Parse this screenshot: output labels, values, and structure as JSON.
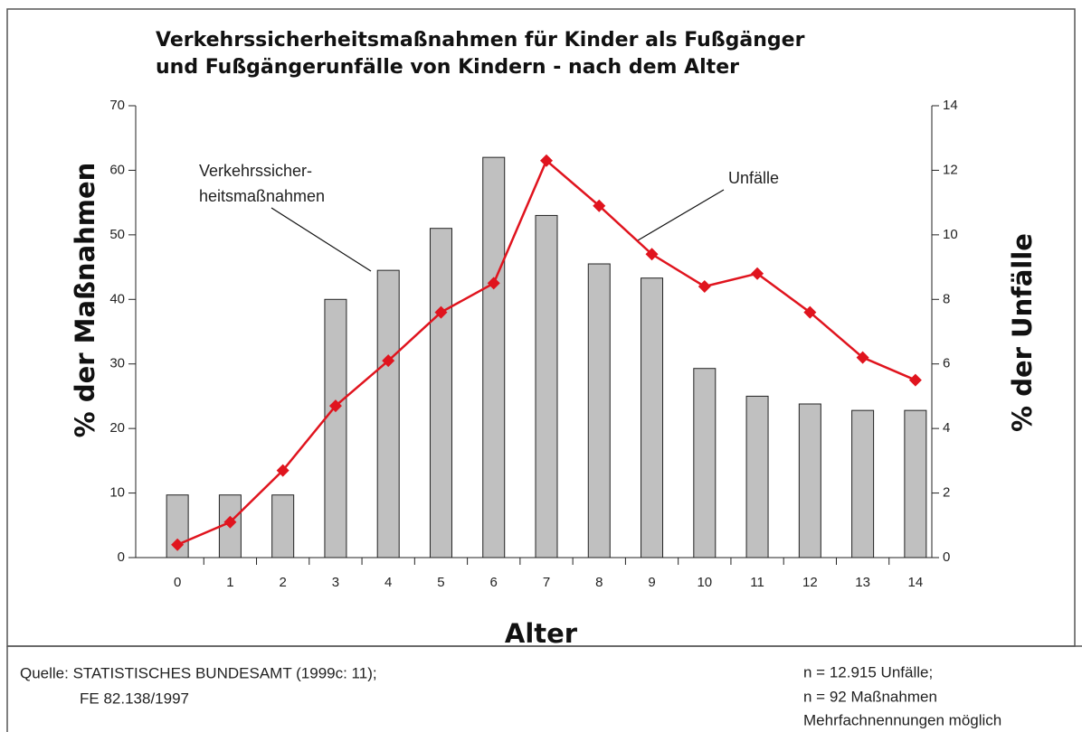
{
  "chart_data": {
    "type": "bar+line",
    "title": [
      "Verkehrssicherheitsmaßnahmen für Kinder als Fußgänger",
      "und Fußgängerunfälle von Kindern - nach dem Alter"
    ],
    "x_label": "Alter",
    "y_label": "% der Maßnahmen",
    "y2_label": "% der Unfälle",
    "categories": [
      "0",
      "1",
      "2",
      "3",
      "4",
      "5",
      "6",
      "7",
      "8",
      "9",
      "10",
      "11",
      "12",
      "13",
      "14"
    ],
    "series": [
      {
        "name": "Verkehrssicherheitsmaßnahmen",
        "type": "bar",
        "color": "#c0c0c0",
        "values": [
          9.7,
          9.7,
          9.7,
          40,
          44.5,
          51,
          62,
          53,
          45.5,
          43.3,
          29.3,
          25,
          23.8,
          22.8,
          22.8
        ]
      },
      {
        "name": "Unfälle",
        "type": "line",
        "axis": "y2",
        "color": "#e0141e",
        "values": [
          0.4,
          1.1,
          2.7,
          4.7,
          6.1,
          7.6,
          8.5,
          12.3,
          10.9,
          9.4,
          8.4,
          8.8,
          7.6,
          6.2,
          5.5
        ]
      }
    ],
    "annotations": [
      {
        "lines": [
          "Verkehrssicher-",
          "heitsmaßnahmen"
        ]
      },
      {
        "lines": [
          "Unfälle"
        ]
      }
    ],
    "ylim": [
      0,
      70
    ],
    "yticks": [
      0,
      10,
      20,
      30,
      40,
      50,
      60,
      70
    ],
    "y2lim": [
      0,
      14
    ],
    "y2ticks": [
      0,
      2,
      4,
      6,
      8,
      10,
      12,
      14
    ],
    "source": [
      "Quelle: STATISTISCHES BUNDESAMT (1999c: 11);",
      "FE 82.138/1997"
    ],
    "notes": [
      "n = 12.915 Unfälle;",
      "n = 92 Maßnahmen",
      "Mehrfachnennungen möglich"
    ]
  }
}
